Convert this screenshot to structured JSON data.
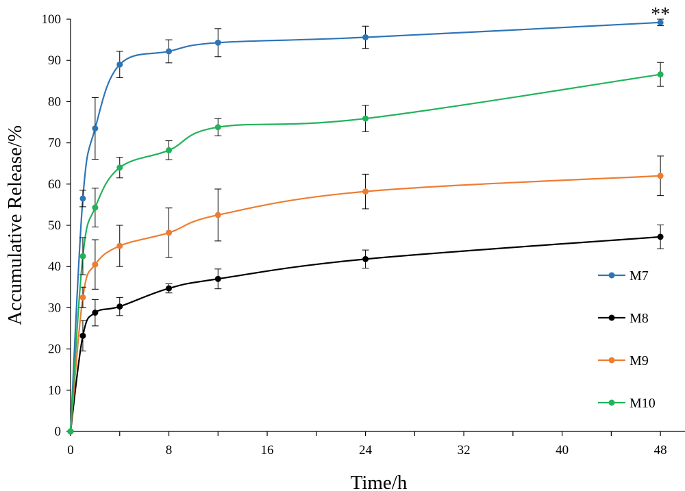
{
  "chart_data": {
    "type": "line",
    "xlabel": "Time/h",
    "ylabel": "Accumulative Release/%",
    "xlim": [
      0,
      50
    ],
    "ylim": [
      0,
      100
    ],
    "x_ticks": [
      0,
      8,
      16,
      24,
      32,
      40,
      48
    ],
    "x_ticks_minor": [
      4,
      12,
      20,
      28,
      36,
      44
    ],
    "y_ticks": [
      0,
      10,
      20,
      30,
      40,
      50,
      60,
      70,
      80,
      90,
      100
    ],
    "grid": false,
    "legend_position": "right",
    "annotation": {
      "text": "**",
      "x": 48,
      "y": 99
    },
    "series": [
      {
        "name": "M7",
        "color": "#2e75b6",
        "x": [
          0,
          1,
          2,
          4,
          8,
          12,
          24,
          48
        ],
        "y": [
          0,
          56.5,
          73.5,
          89,
          92.2,
          94.3,
          95.6,
          99.2
        ],
        "err": [
          0,
          2,
          7.5,
          3.2,
          2.8,
          3.4,
          2.7,
          0.8
        ]
      },
      {
        "name": "M8",
        "color": "#000000",
        "x": [
          0,
          1,
          2,
          4,
          8,
          12,
          24,
          48
        ],
        "y": [
          0,
          23.2,
          28.8,
          30.3,
          34.7,
          37,
          41.8,
          47.2
        ],
        "err": [
          0,
          3.7,
          3.2,
          2.2,
          1.1,
          2.4,
          2.2,
          2.9
        ]
      },
      {
        "name": "M9",
        "color": "#ed7d31",
        "x": [
          0,
          1,
          2,
          4,
          8,
          12,
          24,
          48
        ],
        "y": [
          0,
          32.5,
          40.5,
          45,
          48.2,
          52.5,
          58.2,
          62
        ],
        "err": [
          0,
          2.5,
          6,
          5,
          6,
          6.3,
          4.2,
          4.8
        ]
      },
      {
        "name": "M10",
        "color": "#21b35a",
        "x": [
          0,
          1,
          2,
          4,
          8,
          12,
          24,
          48
        ],
        "y": [
          0,
          42.5,
          54.3,
          64,
          68.2,
          73.8,
          75.9,
          86.6
        ],
        "err": [
          0,
          4.5,
          4.7,
          2.5,
          2.3,
          2.1,
          3.2,
          2.9
        ]
      }
    ]
  }
}
